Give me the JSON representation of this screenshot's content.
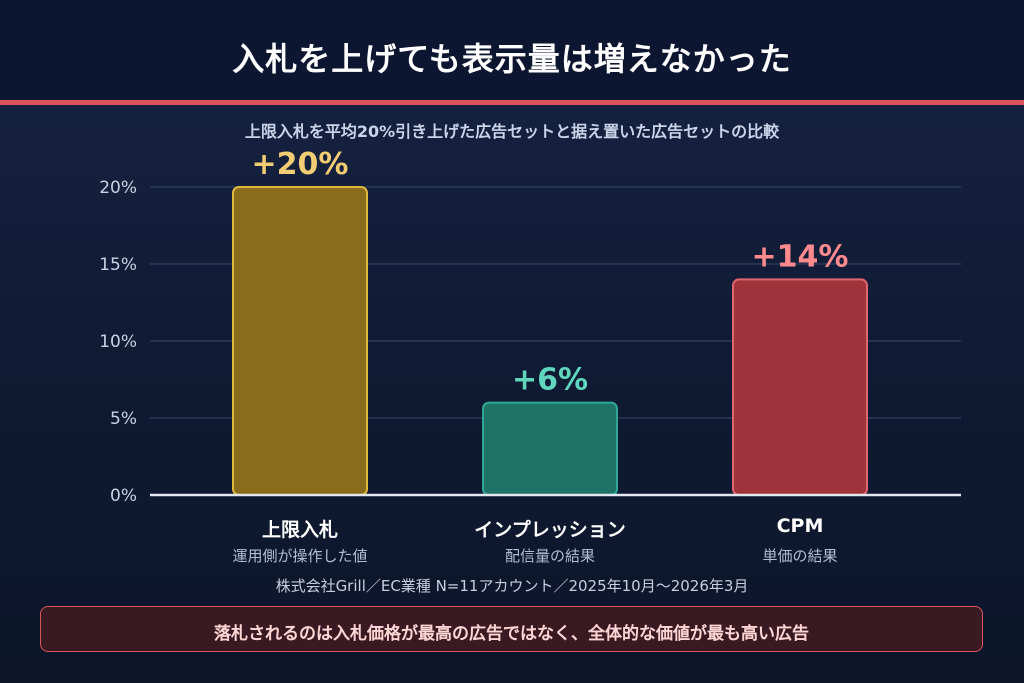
{
  "header": {
    "title": "入札を上げても表示量は増えなかった"
  },
  "subtitle": "上限入札を平均20%引き上げた広告セットと据え置いた広告セットの比較",
  "chart_data": {
    "type": "bar",
    "categories": [
      "上限入札",
      "インプレッション",
      "CPM"
    ],
    "category_sublabels": [
      "運用側が操作した値",
      "配信量の結果",
      "単価の結果"
    ],
    "values": [
      20,
      6,
      14
    ],
    "value_labels": [
      "+20%",
      "+6%",
      "+14%"
    ],
    "ylim": [
      0,
      20
    ],
    "yticks": [
      0,
      5,
      10,
      15,
      20
    ],
    "ytick_labels": [
      "0%",
      "5%",
      "10%",
      "15%",
      "20%"
    ],
    "grid": true,
    "bar_colors": [
      "#8a6d1c",
      "#1e7366",
      "#a0343d"
    ],
    "bar_border_colors": [
      "#e0b93c",
      "#2fa794",
      "#e0666e"
    ],
    "label_colors": [
      "#f2cd73",
      "#5fd6bd",
      "#ff8a8e"
    ]
  },
  "source_note": "株式会社Grill／EC業種 N=11アカウント／2025年10月〜2026年3月",
  "callout": {
    "text": "落札されるのは入札価格が最高の広告ではなく、全体的な価値が最も高い広告"
  }
}
